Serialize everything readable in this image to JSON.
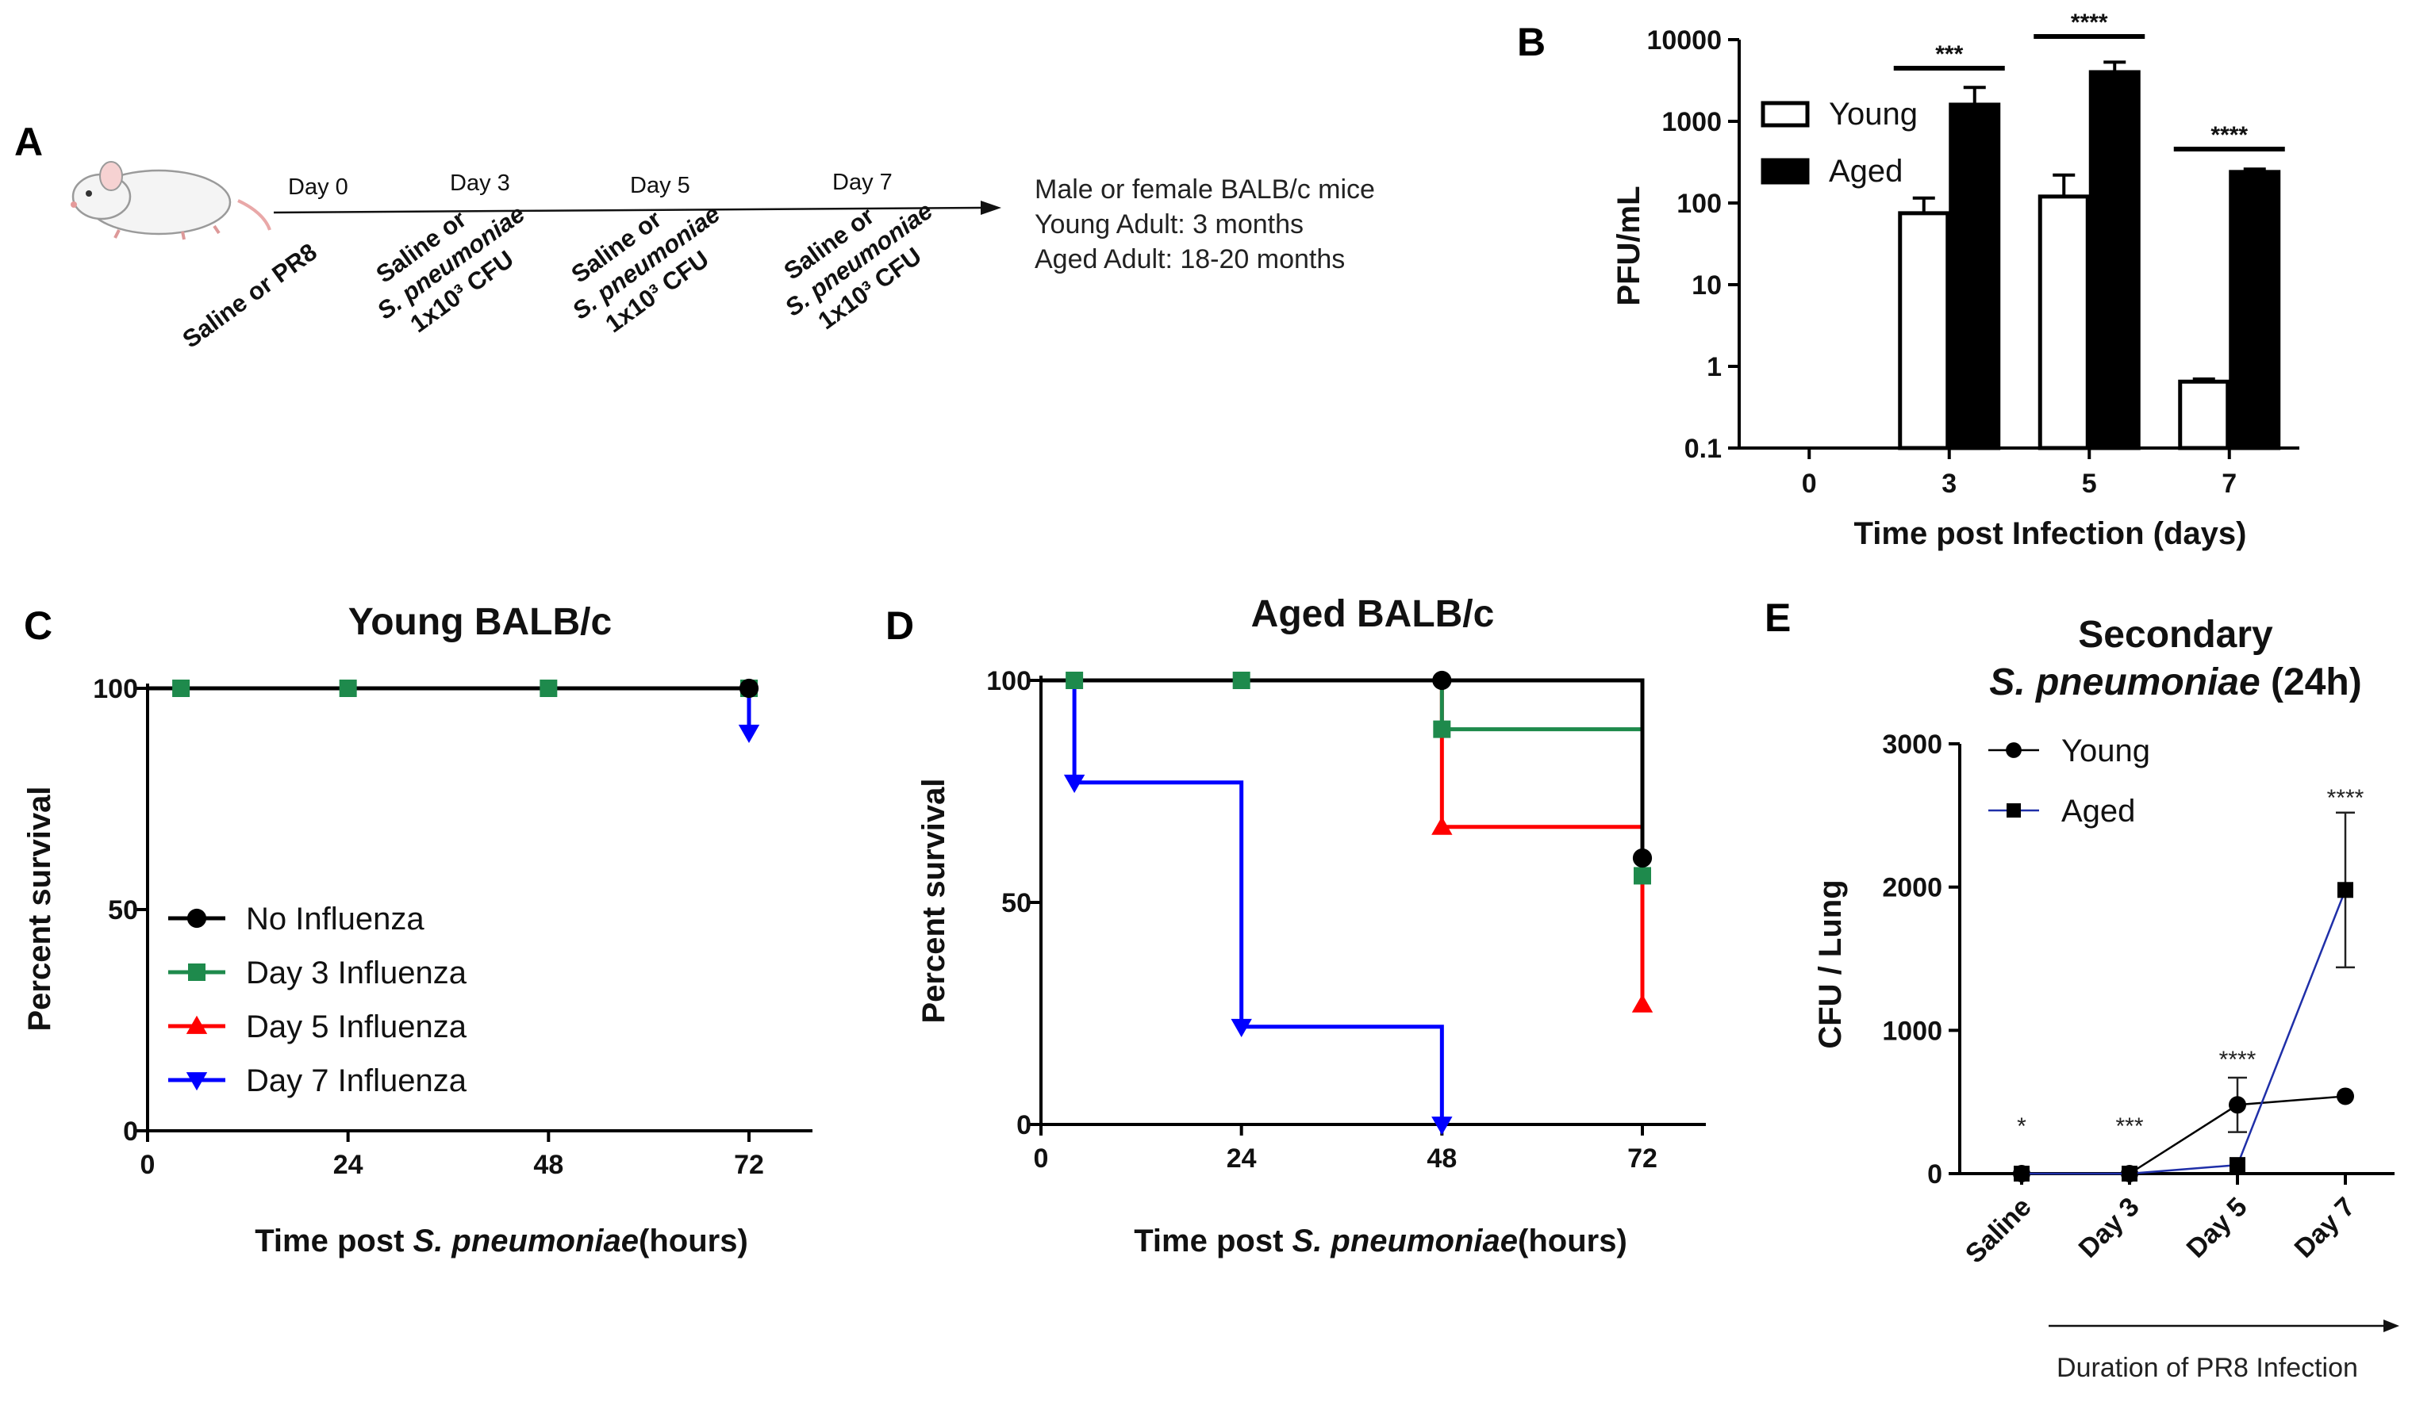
{
  "panel_a": {
    "letter": "A",
    "timeline_days": [
      "Day 0",
      "Day 3",
      "Day 5",
      "Day 7"
    ],
    "treatment_day0": "Saline or PR8",
    "treatment_line1": "Saline or",
    "treatment_line2": "S. pneumoniae",
    "treatment_line3": "1x10³ CFU",
    "info_line1": "Male or female BALB/c mice",
    "info_line2": "Young Adult: 3 months",
    "info_line3": "Aged Adult: 18-20 months"
  },
  "chart_data": [
    {
      "id": "B",
      "type": "bar",
      "letter": "B",
      "scale": "log",
      "categories": [
        "0",
        "3",
        "5",
        "7"
      ],
      "series": [
        {
          "name": "Young",
          "values": [
            null,
            75,
            120,
            0.65
          ],
          "errors": [
            null,
            40,
            100,
            0.05
          ],
          "fill": "#ffffff"
        },
        {
          "name": "Aged",
          "values": [
            null,
            1600,
            4000,
            240
          ],
          "errors": [
            null,
            1000,
            1300,
            20
          ],
          "fill": "#000000"
        }
      ],
      "yticks": [
        "0.1",
        "1",
        "10",
        "100",
        "1000",
        "10000"
      ],
      "ylim": [
        0.1,
        10000
      ],
      "xlabel": "Time post Infection (days)",
      "ylabel": "PFU/mL",
      "significance": [
        {
          "category": "3",
          "label": "***"
        },
        {
          "category": "5",
          "label": "****"
        },
        {
          "category": "7",
          "label": "****"
        }
      ],
      "legend_position": "top-left"
    },
    {
      "id": "C",
      "type": "line",
      "subtype": "step",
      "letter": "C",
      "title": "Young BALB/c",
      "xlabel_prefix": "Time post ",
      "xlabel_italic": "S. pneumoniae",
      "xlabel_suffix": "(hours)",
      "ylabel": "Percent survival",
      "xlim": [
        0,
        72
      ],
      "ylim": [
        0,
        100
      ],
      "xticks": [
        "0",
        "24",
        "48",
        "72"
      ],
      "yticks": [
        "0",
        "50",
        "100"
      ],
      "legend_position": "bottom-left",
      "series": [
        {
          "name": "No Influenza",
          "color": "#000000",
          "marker": "circle",
          "points": [
            [
              0,
              100
            ],
            [
              72,
              100
            ]
          ],
          "markers": [
            [
              72,
              100
            ]
          ]
        },
        {
          "name": "Day 3 Influenza",
          "color": "#1e8a4c",
          "marker": "square",
          "points": [
            [
              0,
              100
            ],
            [
              72,
              100
            ]
          ],
          "markers": [
            [
              4,
              100
            ],
            [
              24,
              100
            ],
            [
              48,
              100
            ],
            [
              72,
              100
            ]
          ]
        },
        {
          "name": "Day 5 Influenza",
          "color": "#ff0000",
          "marker": "triangle-up",
          "points": [
            [
              0,
              100
            ],
            [
              72,
              100
            ]
          ],
          "markers": []
        },
        {
          "name": "Day 7 Influenza",
          "color": "#0000ff",
          "marker": "triangle-down",
          "points": [
            [
              0,
              100
            ],
            [
              72,
              100
            ],
            [
              72,
              90
            ]
          ],
          "markers": [
            [
              72,
              90
            ]
          ]
        }
      ]
    },
    {
      "id": "D",
      "type": "line",
      "subtype": "step",
      "letter": "D",
      "title": "Aged BALB/c",
      "xlabel_prefix": "Time post ",
      "xlabel_italic": "S. pneumoniae",
      "xlabel_suffix": "(hours)",
      "ylabel": "Percent survival",
      "xlim": [
        0,
        72
      ],
      "ylim": [
        0,
        100
      ],
      "xticks": [
        "0",
        "24",
        "48",
        "72"
      ],
      "yticks": [
        "0",
        "50",
        "100"
      ],
      "series": [
        {
          "name": "No Influenza",
          "color": "#000000",
          "marker": "circle",
          "points": [
            [
              0,
              100
            ],
            [
              72,
              100
            ],
            [
              72,
              60
            ]
          ],
          "markers": [
            [
              48,
              100
            ],
            [
              72,
              60
            ]
          ]
        },
        {
          "name": "Day 3 Influenza",
          "color": "#1e8a4c",
          "marker": "square",
          "points": [
            [
              0,
              100
            ],
            [
              48,
              100
            ],
            [
              48,
              89
            ],
            [
              72,
              89
            ],
            [
              72,
              56
            ]
          ],
          "markers": [
            [
              4,
              100
            ],
            [
              24,
              100
            ],
            [
              48,
              89
            ],
            [
              72,
              56
            ]
          ]
        },
        {
          "name": "Day 5 Influenza",
          "color": "#ff0000",
          "marker": "triangle-up",
          "points": [
            [
              48,
              100
            ],
            [
              48,
              67
            ],
            [
              72,
              67
            ],
            [
              72,
              27
            ]
          ],
          "markers": [
            [
              48,
              67
            ],
            [
              72,
              27
            ]
          ]
        },
        {
          "name": "Day 7 Influenza",
          "color": "#0000ff",
          "marker": "triangle-down",
          "points": [
            [
              4,
              100
            ],
            [
              4,
              77
            ],
            [
              24,
              77
            ],
            [
              24,
              22
            ],
            [
              48,
              22
            ],
            [
              48,
              0
            ]
          ],
          "markers": [
            [
              4,
              77
            ],
            [
              24,
              22
            ],
            [
              48,
              0
            ]
          ]
        }
      ]
    },
    {
      "id": "E",
      "type": "line",
      "letter": "E",
      "title_line1": "Secondary",
      "title_italic": "S. pneumoniae",
      "title_suffix": " (24h)",
      "ylabel": "CFU / Lung",
      "categories": [
        "Saline",
        "Day 3",
        "Day 5",
        "Day 7"
      ],
      "yticks": [
        "0",
        "1000",
        "2000",
        "3000"
      ],
      "ylim": [
        0,
        3000
      ],
      "footer": "Duration of PR8 Infection",
      "series": [
        {
          "name": "Young",
          "marker": "circle",
          "color": "#000000",
          "values": [
            0,
            0,
            480,
            540
          ],
          "errors": [
            0,
            0,
            190,
            0
          ]
        },
        {
          "name": "Aged",
          "marker": "square",
          "color": "#1f2fa8",
          "values": [
            0,
            0,
            60,
            1980
          ],
          "errors": [
            0,
            0,
            0,
            540
          ]
        }
      ],
      "significance": [
        "*",
        "***",
        "****",
        "****"
      ],
      "legend_position": "top-left"
    }
  ]
}
